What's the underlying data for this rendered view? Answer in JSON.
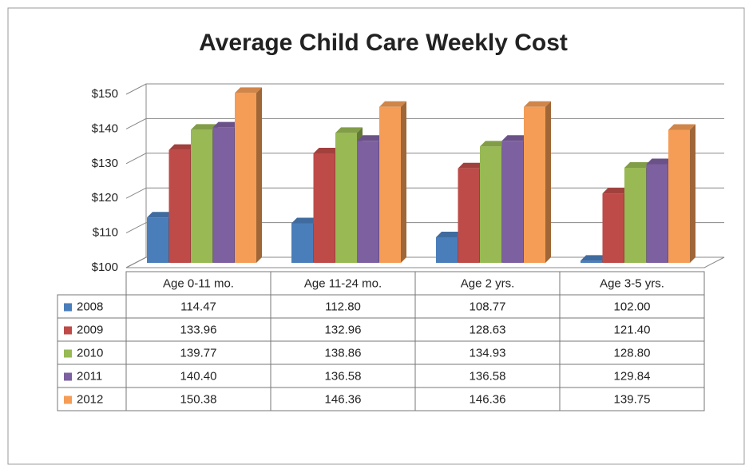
{
  "chart_data": {
    "type": "bar3d",
    "title": "Average Child Care Weekly Cost",
    "categories": [
      "Age 0-11 mo.",
      "Age 11-24 mo.",
      "Age 2 yrs.",
      "Age 3-5 yrs."
    ],
    "series": [
      {
        "name": "2008",
        "color": "#4a7ebb",
        "values": [
          114.47,
          112.8,
          108.77,
          102
        ],
        "value_labels": [
          "114.47",
          "112.80",
          "108.77",
          "102.00"
        ]
      },
      {
        "name": "2009",
        "color": "#be4b48",
        "values": [
          133.96,
          132.96,
          128.63,
          121.4
        ],
        "value_labels": [
          "133.96",
          "132.96",
          "128.63",
          "121.40"
        ]
      },
      {
        "name": "2010",
        "color": "#98b954",
        "values": [
          139.77,
          138.86,
          134.93,
          128.8
        ],
        "value_labels": [
          "139.77",
          "138.86",
          "134.93",
          "128.80"
        ]
      },
      {
        "name": "2011",
        "color": "#7d60a0",
        "values": [
          140.4,
          136.58,
          136.58,
          129.84
        ],
        "value_labels": [
          "140.40",
          "136.58",
          "136.58",
          "129.84"
        ]
      },
      {
        "name": "2012",
        "color": "#f59d56",
        "values": [
          150.38,
          146.36,
          146.36,
          139.75
        ],
        "value_labels": [
          "150.38",
          "146.36",
          "146.36",
          "139.75"
        ]
      }
    ],
    "ylim": [
      100,
      150
    ],
    "yticks": [
      {
        "value": 100,
        "label": "$100"
      },
      {
        "value": 110,
        "label": "$110"
      },
      {
        "value": 120,
        "label": "$120"
      },
      {
        "value": 130,
        "label": "$130"
      },
      {
        "value": 140,
        "label": "$140"
      },
      {
        "value": 150,
        "label": "$150"
      }
    ],
    "grid": true
  }
}
